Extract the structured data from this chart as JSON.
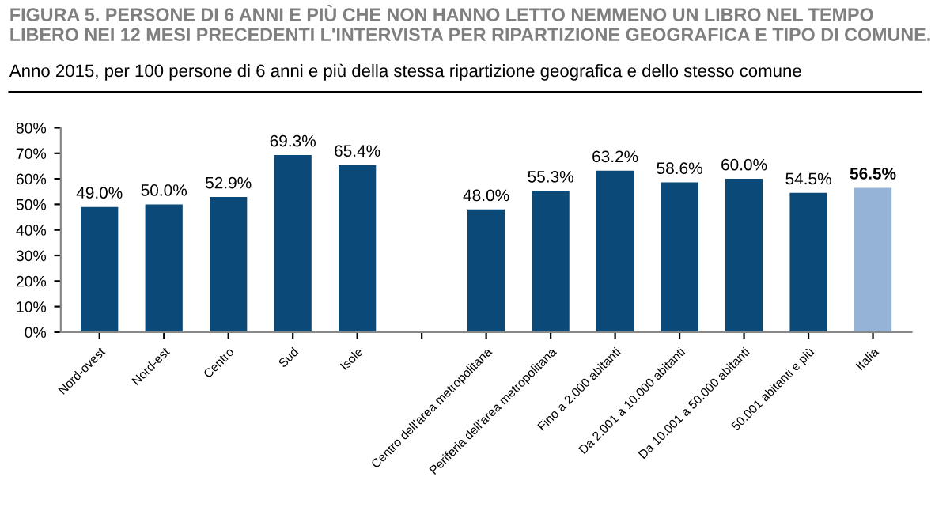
{
  "chart_data": {
    "type": "bar",
    "title": "FIGURA 5. PERSONE DI 6 ANNI E PIÙ CHE NON HANNO LETTO NEMMENO UN LIBRO NEL TEMPO LIBERO NEI 12 MESI PRECEDENTI L'INTERVISTA PER RIPARTIZIONE GEOGRAFICA E TIPO DI COMUNE.",
    "subtitle": "Anno 2015, per 100 persone di 6 anni e più della stessa ripartizione geografica e dello stesso comune",
    "categories": [
      "Nord-ovest",
      "Nord-est",
      "Centro",
      "Sud",
      "Isole",
      null,
      "Centro dell'area metropolitana",
      "Periferia dell'area metropolitana",
      "Fino a 2.000 abitanti",
      "Da 2.001 a 10.000 abitanti",
      "Da 10.001 a 50.000 abitanti",
      "50.001 abitanti e più",
      "Italia"
    ],
    "values": [
      49.0,
      50.0,
      52.9,
      69.3,
      65.4,
      null,
      48.0,
      55.3,
      63.2,
      58.6,
      60.0,
      54.5,
      56.5
    ],
    "value_labels": [
      "49.0%",
      "50.0%",
      "52.9%",
      "69.3%",
      "65.4%",
      null,
      "48.0%",
      "55.3%",
      "63.2%",
      "58.6%",
      "60.0%",
      "54.5%",
      "56.5%"
    ],
    "colors": [
      "#0b4a78",
      "#0b4a78",
      "#0b4a78",
      "#0b4a78",
      "#0b4a78",
      "#0b4a78",
      "#0b4a78",
      "#0b4a78",
      "#0b4a78",
      "#0b4a78",
      "#0b4a78",
      "#0b4a78",
      "#95b3d7"
    ],
    "ylim": [
      0,
      80
    ],
    "yticks": [
      {
        "value": 0,
        "label": "0%"
      },
      {
        "value": 10,
        "label": "10%"
      },
      {
        "value": 20,
        "label": "20%"
      },
      {
        "value": 30,
        "label": "30%"
      },
      {
        "value": 40,
        "label": "40%"
      },
      {
        "value": 50,
        "label": "50%"
      },
      {
        "value": 60,
        "label": "60%"
      },
      {
        "value": 70,
        "label": "70%"
      },
      {
        "value": 80,
        "label": "80%"
      }
    ],
    "grid": false,
    "legend": false
  }
}
